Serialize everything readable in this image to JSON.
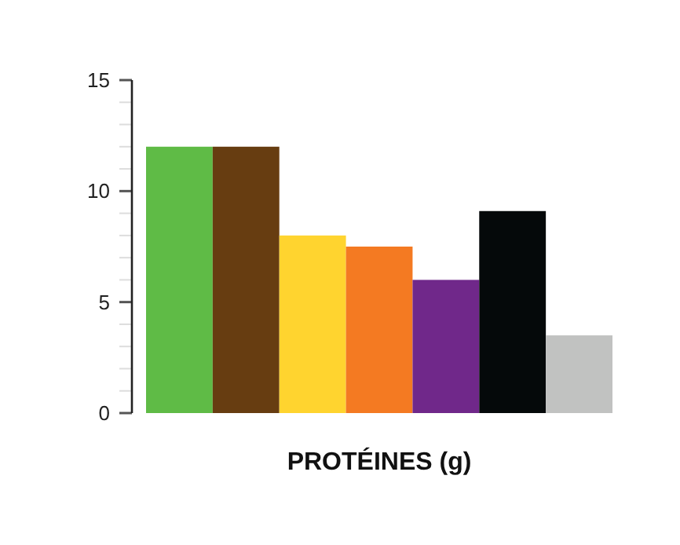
{
  "chart_data": {
    "type": "bar",
    "xlabel": "PROTÉINES (g)",
    "categories": [
      null,
      null,
      null,
      null,
      null,
      null,
      null
    ],
    "values": [
      12,
      12,
      8,
      7.5,
      6,
      9.1,
      3.5
    ],
    "colors": [
      "#5fbb46",
      "#673d11",
      "#ffd42f",
      "#f47a22",
      "#70288a",
      "#05090a",
      "#c1c2c1"
    ],
    "ylim": [
      0,
      15
    ],
    "yticks": [
      0,
      {
        "value": 1,
        "label": null
      },
      {
        "value": 2,
        "label": null
      },
      {
        "value": 3,
        "label": null
      },
      {
        "value": 4,
        "label": null
      },
      5,
      {
        "value": 6,
        "label": null
      },
      {
        "value": 7,
        "label": null
      },
      {
        "value": 8,
        "label": null
      },
      {
        "value": 9,
        "label": null
      },
      10,
      {
        "value": 11,
        "label": null
      },
      {
        "value": 12,
        "label": null
      },
      {
        "value": 13,
        "label": null
      },
      {
        "value": 14,
        "label": null
      },
      15
    ]
  }
}
